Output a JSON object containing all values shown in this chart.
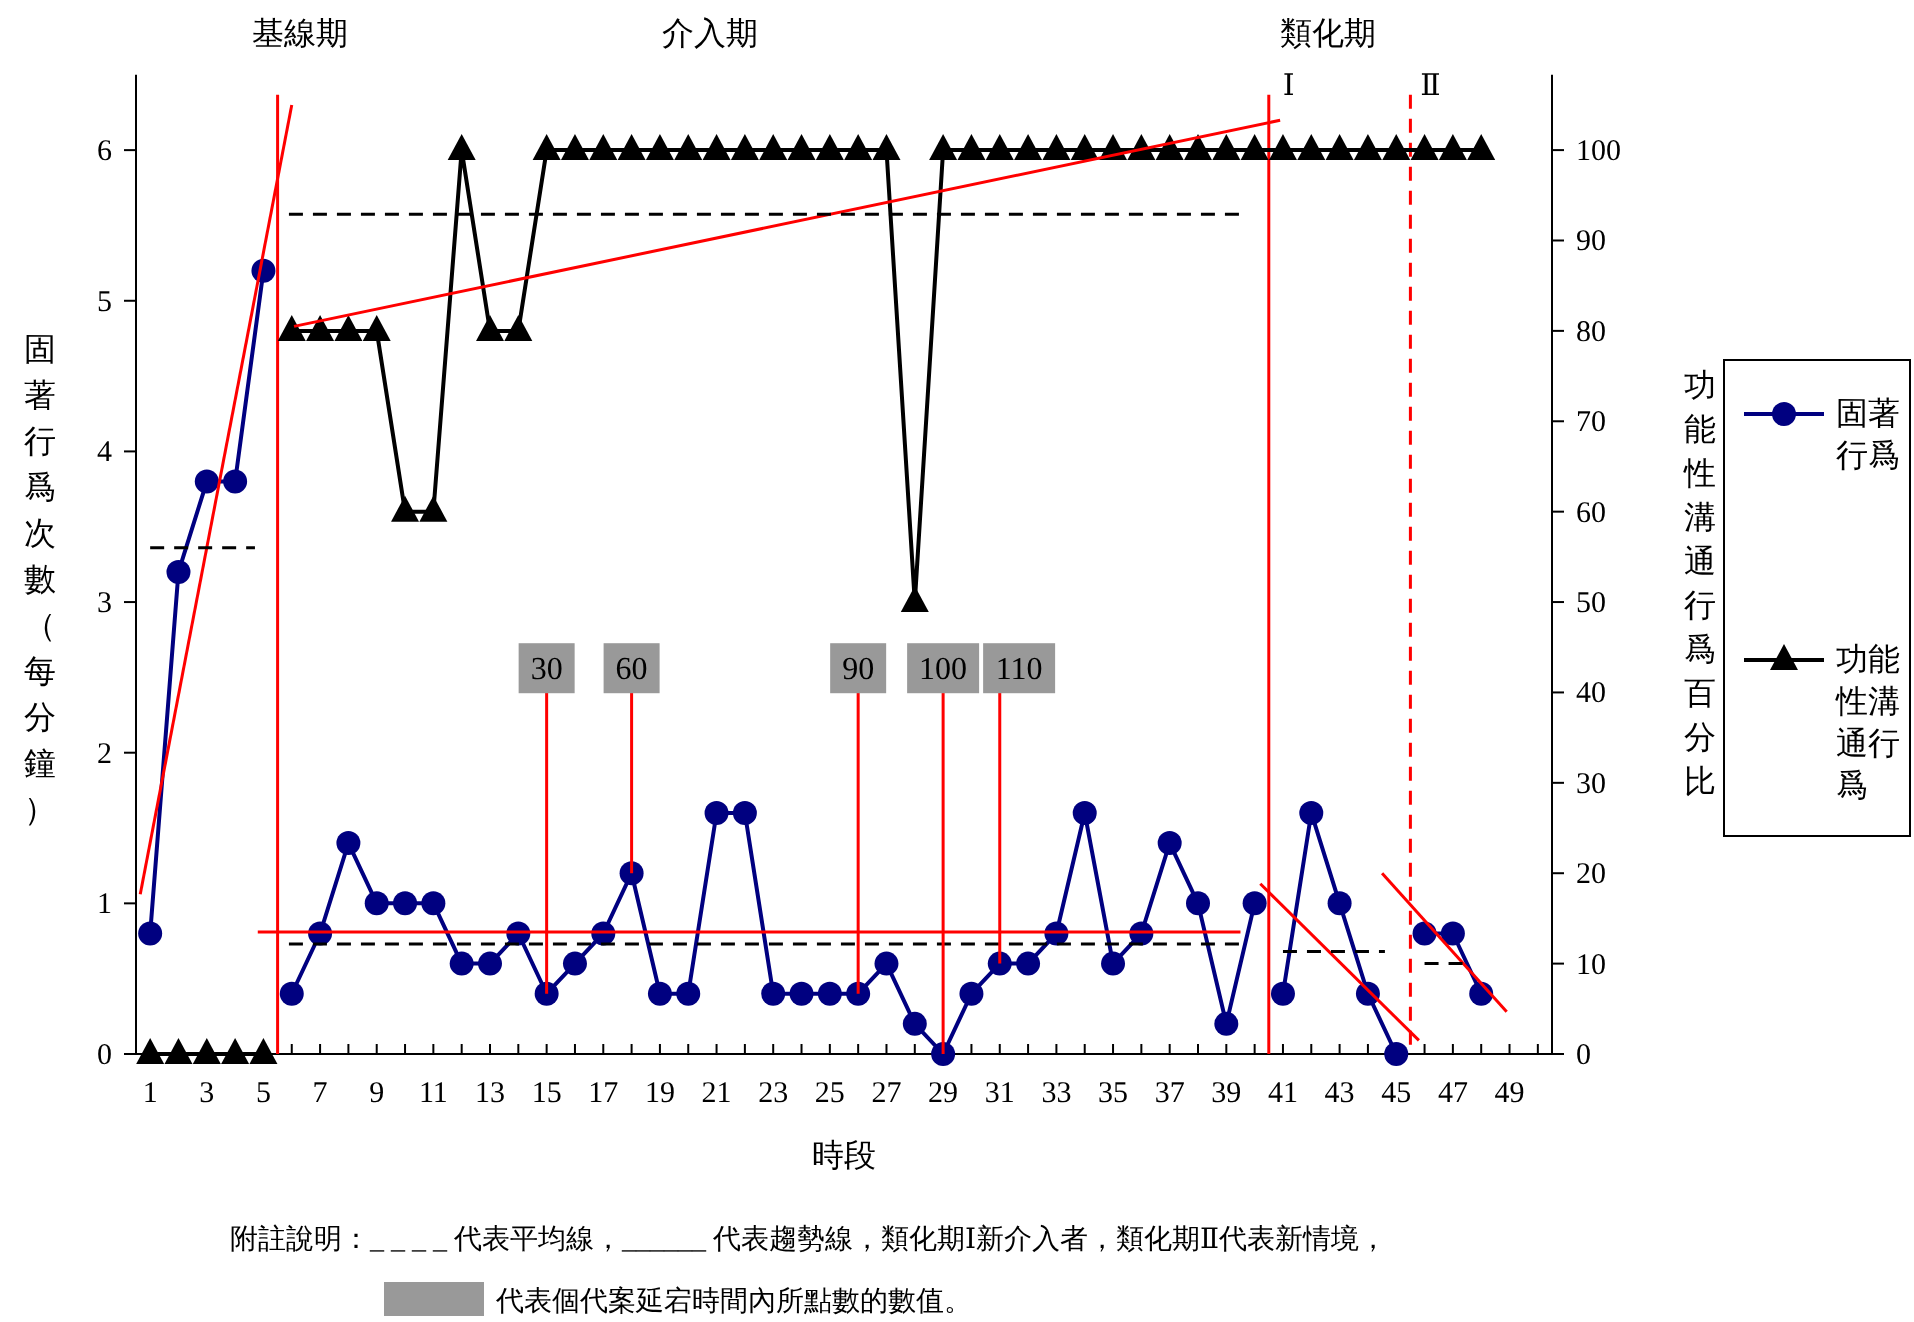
{
  "chart_data": {
    "type": "line",
    "xlabel": "時段",
    "ylabel": "固著行爲次數（每分鐘）",
    "y2label": "功能性溝通行爲百分比",
    "xlim": [
      0.5,
      50.5
    ],
    "xticks": [
      1,
      {
        "value": 2,
        "label": null
      },
      3,
      {
        "value": 4,
        "label": null
      },
      5,
      {
        "value": 6,
        "label": null
      },
      7,
      {
        "value": 8,
        "label": null
      },
      9,
      {
        "value": 10,
        "label": null
      },
      11,
      {
        "value": 12,
        "label": null
      },
      13,
      {
        "value": 14,
        "label": null
      },
      15,
      {
        "value": 16,
        "label": null
      },
      17,
      {
        "value": 18,
        "label": null
      },
      19,
      {
        "value": 20,
        "label": null
      },
      21,
      {
        "value": 22,
        "label": null
      },
      23,
      {
        "value": 24,
        "label": null
      },
      25,
      {
        "value": 26,
        "label": null
      },
      27,
      {
        "value": 28,
        "label": null
      },
      29,
      {
        "value": 30,
        "label": null
      },
      31,
      {
        "value": 32,
        "label": null
      },
      33,
      {
        "value": 34,
        "label": null
      },
      35,
      {
        "value": 36,
        "label": null
      },
      37,
      {
        "value": 38,
        "label": null
      },
      39,
      {
        "value": 40,
        "label": null
      },
      41,
      {
        "value": 42,
        "label": null
      },
      43,
      {
        "value": 44,
        "label": null
      },
      45,
      {
        "value": 46,
        "label": null
      },
      47,
      {
        "value": 48,
        "label": null
      },
      49,
      {
        "value": 50,
        "label": null
      }
    ],
    "ylim": [
      0,
      6.5
    ],
    "yticks": [
      0,
      1,
      2,
      3,
      4,
      5,
      6
    ],
    "y2lim": [
      0,
      108.33
    ],
    "y2ticks": [
      0,
      10,
      20,
      30,
      40,
      50,
      60,
      70,
      80,
      90,
      100
    ],
    "legend": "right",
    "series": [
      {
        "name": "固著行爲",
        "color": "#000080",
        "marker": "circle",
        "x": [
          1,
          2,
          3,
          4,
          5
        ],
        "values": [
          0.8,
          3.2,
          3.8,
          3.8,
          5.2
        ]
      },
      {
        "color": "#000080",
        "marker": "circle",
        "x": [
          6,
          7,
          8,
          9,
          10,
          11,
          12,
          13,
          14,
          15,
          16,
          17,
          18,
          19,
          20,
          21,
          22,
          23,
          24,
          25,
          26,
          27,
          28,
          29,
          30,
          31,
          32,
          33,
          34,
          35,
          36,
          37,
          38,
          39,
          40
        ],
        "values": [
          0.4,
          0.8,
          1.4,
          1.0,
          1.0,
          1.0,
          0.6,
          0.6,
          0.8,
          0.4,
          0.6,
          0.8,
          1.2,
          0.4,
          0.4,
          1.6,
          1.6,
          0.4,
          0.4,
          0.4,
          0.4,
          0.6,
          0.2,
          0,
          0.4,
          0.6,
          0.6,
          0.8,
          1.6,
          0.6,
          0.8,
          1.4,
          1.0,
          0.2,
          1.0
        ]
      },
      {
        "color": "#000080",
        "marker": "circle",
        "x": [
          41,
          42,
          43,
          44,
          45
        ],
        "values": [
          0.4,
          1.6,
          1.0,
          0.4,
          0
        ]
      },
      {
        "color": "#000080",
        "marker": "circle",
        "x": [
          46,
          47,
          48
        ],
        "values": [
          0.8,
          0.8,
          0.4
        ]
      },
      {
        "name": "功能性溝通行爲",
        "color": "#000000",
        "marker": "triangle",
        "axis": "y2",
        "x": [
          1,
          2,
          3,
          4,
          5
        ],
        "values": [
          0,
          0,
          0,
          0,
          0
        ]
      },
      {
        "color": "#000000",
        "marker": "triangle",
        "axis": "y2",
        "x": [
          6,
          7,
          8,
          9,
          10,
          11,
          12,
          13,
          14,
          15,
          16,
          17,
          18,
          19,
          20,
          21,
          22,
          23,
          24,
          25,
          26,
          27,
          28,
          29,
          30,
          31,
          32,
          33,
          34,
          35,
          36,
          37,
          38,
          39,
          40,
          41,
          42,
          43,
          44,
          45,
          46,
          47,
          48
        ],
        "values": [
          80,
          80,
          80,
          80,
          60,
          60,
          100,
          80,
          80,
          100,
          100,
          100,
          100,
          100,
          100,
          100,
          100,
          100,
          100,
          100,
          100,
          100,
          50,
          100,
          100,
          100,
          100,
          100,
          100,
          100,
          100,
          100,
          100,
          100,
          100,
          100,
          100,
          100,
          100,
          100,
          100,
          100,
          100
        ]
      },
      {
        "color": "#ff0000",
        "marker": "none",
        "x": [
          0.65,
          6.0
        ],
        "values": [
          1.06,
          6.3
        ]
      },
      {
        "color": "#ff0000",
        "marker": "none",
        "axis": "y2",
        "x": [
          6.08,
          40.9
        ],
        "values": [
          80.5,
          103.3
        ]
      },
      {
        "color": "#ff0000",
        "marker": "none",
        "x": [
          4.8,
          39.5
        ],
        "values": [
          0.81,
          0.81
        ]
      },
      {
        "color": "#ff0000",
        "marker": "none",
        "x": [
          40.2,
          45.8
        ],
        "values": [
          1.13,
          0.09
        ]
      },
      {
        "color": "#ff0000",
        "marker": "none",
        "x": [
          44.5,
          48.9
        ],
        "values": [
          1.2,
          0.28
        ]
      },
      {
        "color": "#000000",
        "marker": "none",
        "line_style": "dashed",
        "x": [
          1,
          4.7
        ],
        "values": [
          3.36,
          3.36
        ]
      },
      {
        "color": "#000000",
        "marker": "none",
        "line_style": "dashed",
        "axis": "y2",
        "x": [
          5.9,
          39.6
        ],
        "values": [
          92.9,
          92.9
        ]
      },
      {
        "color": "#000000",
        "marker": "none",
        "line_style": "dashed",
        "x": [
          5.9,
          39.6
        ],
        "values": [
          0.73,
          0.73
        ]
      },
      {
        "color": "#000000",
        "marker": "none",
        "line_style": "dashed",
        "x": [
          41,
          44.6
        ],
        "values": [
          0.68,
          0.68
        ]
      },
      {
        "color": "#000000",
        "marker": "none",
        "line_style": "dashed",
        "x": [
          46,
          47.4
        ],
        "values": [
          0.6,
          0.6
        ]
      }
    ],
    "ref_lines": [
      {
        "axis": "x",
        "value": 5.5,
        "label": null,
        "color": "#ff0000",
        "line_style": "solid"
      },
      {
        "axis": "x",
        "value": 40.5,
        "label": "Ⅰ",
        "color": "#ff0000",
        "line_style": "solid"
      },
      {
        "axis": "x",
        "value": 45.5,
        "label": "Ⅱ",
        "color": "#ff0000",
        "line_style": "dashed"
      }
    ],
    "annotations": [
      "基線期",
      "介入期",
      "類化期",
      {
        "text": "30",
        "x": 15,
        "y": 0.4
      },
      {
        "text": "60",
        "x": 18,
        "y": 1.2
      },
      {
        "text": "90",
        "x": 26,
        "y": 0.4
      },
      {
        "text": "100",
        "x": 29,
        "y": 0
      },
      {
        "text": "110",
        "x": 31,
        "y": 0.6
      },
      "附註說明：_ _ _ _ 代表平均線，______ 代表趨勢線，類化期Ⅰ新介入者，類化期Ⅱ代表新情境，",
      "代表個代案延宕時間內所點數的數值。"
    ]
  }
}
